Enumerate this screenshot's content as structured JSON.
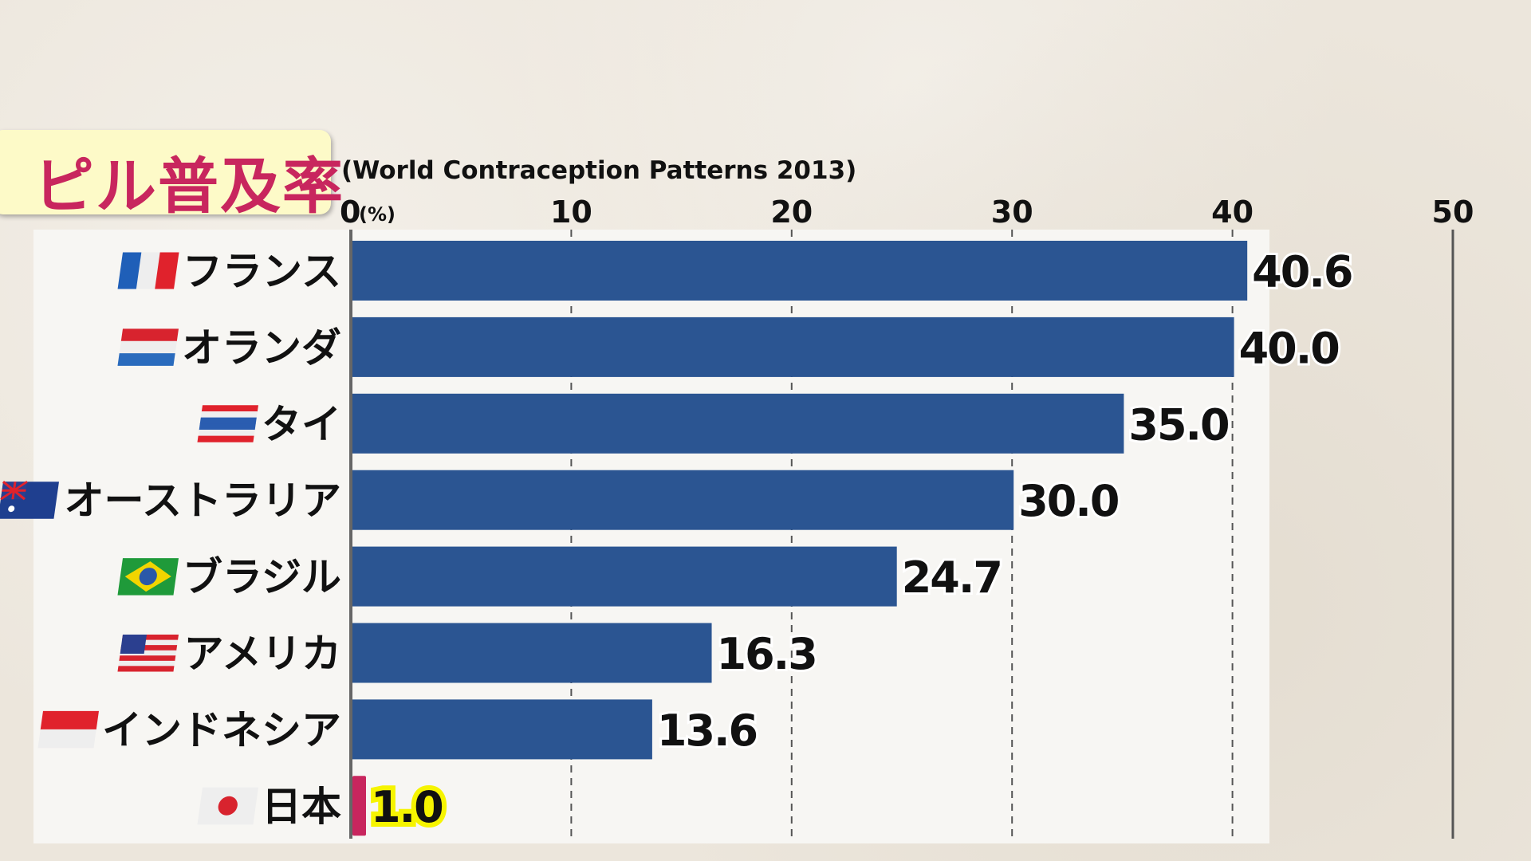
{
  "chart_data": {
    "type": "bar",
    "orientation": "horizontal",
    "title": "ピル普及率",
    "subtitle": "(World Contraception Patterns 2013)",
    "unit_label": "(%)",
    "xlim": [
      0,
      50
    ],
    "ticks": [
      "0",
      "10",
      "20",
      "30",
      "40",
      "50"
    ],
    "grid": true,
    "categories": [
      "フランス",
      "オランダ",
      "タイ",
      "オーストラリア",
      "ブラジル",
      "アメリカ",
      "インドネシア",
      "日本"
    ],
    "values": [
      40.6,
      40.0,
      35.0,
      30.0,
      24.7,
      16.3,
      13.6,
      1.0
    ],
    "value_labels": [
      "40.6",
      "40.0",
      "35.0",
      "30.0",
      "24.7",
      "16.3",
      "13.6",
      "1.0"
    ],
    "flags": [
      {
        "icon": "france-flag-icon",
        "stripes": [
          "#1f5fb8",
          "#eeeeee",
          "#e0222c"
        ],
        "dir": "v"
      },
      {
        "icon": "netherlands-flag-icon",
        "stripes": [
          "#d8232e",
          "#eeeeee",
          "#2a6bbd"
        ],
        "dir": "h"
      },
      {
        "icon": "thailand-flag-icon",
        "stripes": [
          "#e0222c",
          "#eeeeee",
          "#2a5db0",
          "#2a5db0",
          "#eeeeee",
          "#e0222c"
        ],
        "dir": "h"
      },
      {
        "icon": "australia-flag-icon",
        "stripes": [
          "#1f3f8f"
        ],
        "dir": "h"
      },
      {
        "icon": "brazil-flag-icon",
        "stripes": [
          "#1f9a3a"
        ],
        "dir": "h"
      },
      {
        "icon": "usa-flag-icon",
        "stripes": [
          "#d8232e",
          "#eeeeee",
          "#d8232e",
          "#eeeeee",
          "#d8232e",
          "#eeeeee",
          "#d8232e"
        ],
        "dir": "h"
      },
      {
        "icon": "indonesia-flag-icon",
        "stripes": [
          "#e0222c",
          "#eeeeee"
        ],
        "dir": "h"
      },
      {
        "icon": "japan-flag-icon",
        "stripes": [
          "#eeeeee"
        ],
        "dir": "h"
      }
    ],
    "colors": {
      "bar": "#2b5592",
      "highlight_bar": "#c8265e",
      "highlight_glow": "#f6f400"
    },
    "highlight_index": 7
  }
}
